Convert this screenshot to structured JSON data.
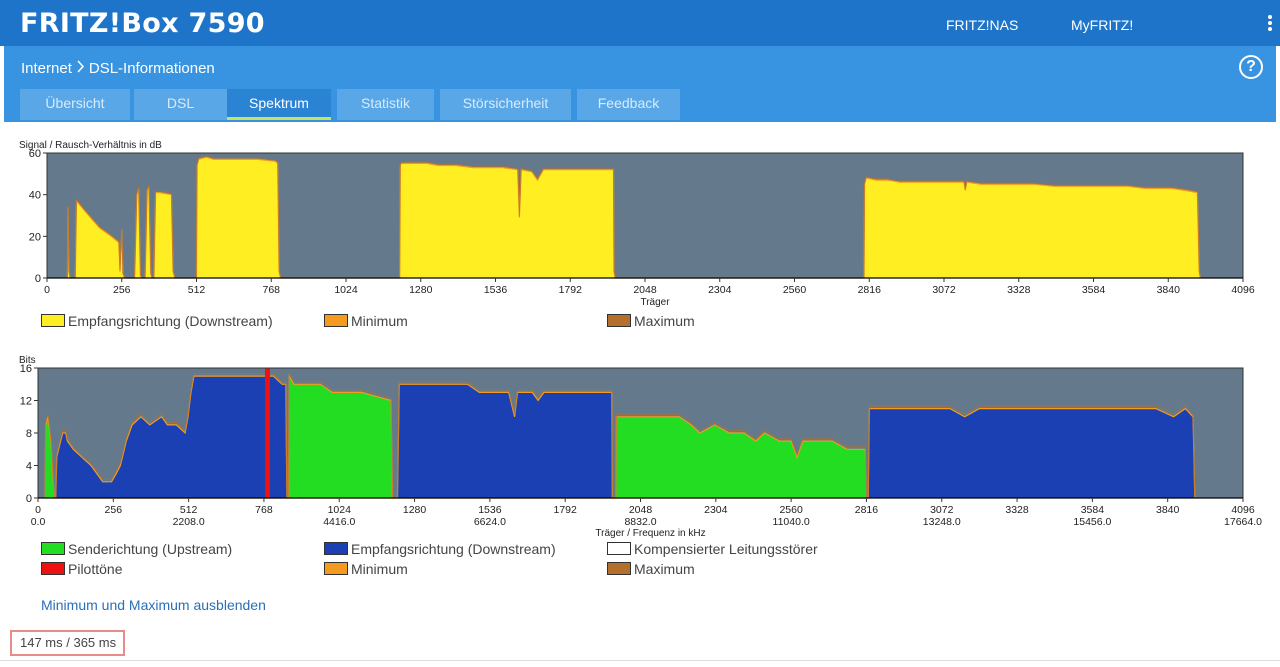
{
  "header": {
    "brand": "FRITZ!Box 7590",
    "links": [
      "FRITZ!NAS",
      "MyFRITZ!"
    ],
    "more_icon": "more-vertical-icon"
  },
  "breadcrumb": {
    "parent": "Internet",
    "separator": ">",
    "current": "DSL-Informationen",
    "help_icon": "help-icon"
  },
  "tabs": [
    {
      "label": "Übersicht",
      "active": false
    },
    {
      "label": "DSL",
      "active": false
    },
    {
      "label": "Spektrum",
      "active": true
    },
    {
      "label": "Statistik",
      "active": false
    },
    {
      "label": "Störsicherheit",
      "active": false
    },
    {
      "label": "Feedback",
      "active": false
    }
  ],
  "colors": {
    "plot_bg": "#647a8c",
    "snr_fill": "#ffee22",
    "minimum": "#f39a1f",
    "maximum": "#b46f2d",
    "upstream": "#22dd22",
    "downstream": "#1a40b4",
    "pilot": "#ee1111",
    "compensated": "#ffffff"
  },
  "chart_data": [
    {
      "type": "area",
      "ylabel": "Signal / Rausch-Verhältnis in dB",
      "xlabel": "Träger",
      "xlim": [
        0,
        4096
      ],
      "ylim": [
        0,
        60
      ],
      "yticks": [
        0,
        20,
        40,
        60
      ],
      "xticks": [
        0,
        256,
        512,
        768,
        1024,
        1280,
        1536,
        1792,
        2048,
        2304,
        2560,
        2816,
        3072,
        3328,
        3584,
        3840,
        4096
      ],
      "legend": [
        {
          "label": "Empfangsrichtung (Downstream)",
          "color_key": "snr_fill"
        },
        {
          "label": "Minimum",
          "color_key": "minimum"
        },
        {
          "label": "Maximum",
          "color_key": "maximum"
        }
      ],
      "series": [
        {
          "band": "downstream",
          "points": [
            [
              70,
              0
            ],
            [
              72,
              34
            ],
            [
              75,
              3
            ],
            [
              79,
              0
            ],
            [
              97,
              0
            ],
            [
              101,
              37
            ],
            [
              130,
              32
            ],
            [
              180,
              24
            ],
            [
              220,
              20
            ],
            [
              246,
              17
            ],
            [
              250,
              3
            ],
            [
              256,
              23
            ],
            [
              260,
              2
            ],
            [
              266,
              0
            ],
            [
              300,
              0
            ],
            [
              308,
              40
            ],
            [
              314,
              43
            ],
            [
              320,
              1
            ],
            [
              326,
              0
            ],
            [
              336,
              0
            ],
            [
              343,
              42
            ],
            [
              349,
              44
            ],
            [
              355,
              2
            ],
            [
              360,
              0
            ],
            [
              366,
              0
            ],
            [
              372,
              41
            ],
            [
              386,
              41
            ],
            [
              426,
              40
            ],
            [
              432,
              3
            ],
            [
              438,
              0
            ],
            [
              512,
              0
            ],
            [
              514,
              54
            ],
            [
              520,
              57
            ],
            [
              546,
              58
            ],
            [
              570,
              57
            ],
            [
              640,
              57
            ],
            [
              720,
              57
            ],
            [
              782,
              56
            ],
            [
              790,
              55
            ],
            [
              795,
              3
            ],
            [
              800,
              0
            ],
            [
              1208,
              0
            ],
            [
              1210,
              54
            ],
            [
              1214,
              55
            ],
            [
              1240,
              55
            ],
            [
              1300,
              55
            ],
            [
              1340,
              54
            ],
            [
              1400,
              54
            ],
            [
              1460,
              53
            ],
            [
              1510,
              53
            ],
            [
              1560,
              53
            ],
            [
              1612,
              52
            ],
            [
              1618,
              29
            ],
            [
              1624,
              52
            ],
            [
              1660,
              51
            ],
            [
              1680,
              47
            ],
            [
              1700,
              52
            ],
            [
              1760,
              52
            ],
            [
              1830,
              52
            ],
            [
              1940,
              52
            ],
            [
              1942,
              3
            ],
            [
              1946,
              0
            ],
            [
              2798,
              0
            ],
            [
              2800,
              45
            ],
            [
              2806,
              48
            ],
            [
              2840,
              47
            ],
            [
              2880,
              47
            ],
            [
              2920,
              46
            ],
            [
              3000,
              46
            ],
            [
              3080,
              46
            ],
            [
              3140,
              46
            ],
            [
              3145,
              42
            ],
            [
              3150,
              46
            ],
            [
              3200,
              45
            ],
            [
              3300,
              45
            ],
            [
              3380,
              45
            ],
            [
              3450,
              44
            ],
            [
              3520,
              44
            ],
            [
              3600,
              44
            ],
            [
              3700,
              44
            ],
            [
              3760,
              43
            ],
            [
              3800,
              43
            ],
            [
              3850,
              43
            ],
            [
              3900,
              42
            ],
            [
              3940,
              41
            ],
            [
              3946,
              3
            ],
            [
              3950,
              0
            ]
          ]
        }
      ]
    },
    {
      "type": "area",
      "ylabel": "Bits",
      "xlabel": "Träger / Frequenz in kHz",
      "xlim": [
        0,
        4096
      ],
      "ylim": [
        0,
        16
      ],
      "yticks": [
        0,
        4,
        8,
        12,
        16
      ],
      "xticks": [
        0,
        256,
        512,
        768,
        1024,
        1280,
        1536,
        1792,
        2048,
        2304,
        2560,
        2816,
        3072,
        3328,
        3584,
        3840,
        4096
      ],
      "freq_ticks": [
        {
          "carrier": 0,
          "label": "0.0"
        },
        {
          "carrier": 512,
          "label": "2208.0"
        },
        {
          "carrier": 1024,
          "label": "4416.0"
        },
        {
          "carrier": 1536,
          "label": "6624.0"
        },
        {
          "carrier": 2048,
          "label": "8832.0"
        },
        {
          "carrier": 2560,
          "label": "11040.0"
        },
        {
          "carrier": 3072,
          "label": "13248.0"
        },
        {
          "carrier": 3584,
          "label": "15456.0"
        },
        {
          "carrier": 4096,
          "label": "17664.0"
        }
      ],
      "legend": [
        {
          "label": "Senderichtung (Upstream)",
          "color_key": "upstream"
        },
        {
          "label": "Empfangsrichtung (Downstream)",
          "color_key": "downstream"
        },
        {
          "label": "Kompensierter Leitungsstörer",
          "color_key": "compensated"
        },
        {
          "label": "Pilottöne",
          "color_key": "pilot"
        },
        {
          "label": "Minimum",
          "color_key": "minimum"
        },
        {
          "label": "Maximum",
          "color_key": "maximum"
        }
      ],
      "pilot_carriers": [
        780
      ],
      "series": [
        {
          "band": "upstream",
          "points": [
            [
              24,
              0
            ],
            [
              26,
              9
            ],
            [
              34,
              10
            ],
            [
              44,
              7
            ],
            [
              50,
              3
            ],
            [
              56,
              0
            ],
            [
              852,
              0
            ],
            [
              854,
              15
            ],
            [
              870,
              14
            ],
            [
              960,
              14
            ],
            [
              1000,
              13
            ],
            [
              1030,
              13
            ],
            [
              1100,
              13
            ],
            [
              1200,
              12
            ],
            [
              1205,
              0
            ],
            [
              1964,
              0
            ],
            [
              1966,
              10
            ],
            [
              2000,
              10
            ],
            [
              2100,
              10
            ],
            [
              2180,
              10
            ],
            [
              2220,
              9
            ],
            [
              2250,
              8
            ],
            [
              2300,
              9
            ],
            [
              2350,
              8
            ],
            [
              2400,
              8
            ],
            [
              2440,
              7
            ],
            [
              2470,
              8
            ],
            [
              2520,
              7
            ],
            [
              2560,
              7
            ],
            [
              2580,
              5
            ],
            [
              2600,
              7
            ],
            [
              2650,
              7
            ],
            [
              2700,
              7
            ],
            [
              2750,
              6
            ],
            [
              2800,
              6
            ],
            [
              2812,
              6
            ],
            [
              2815,
              0
            ]
          ]
        },
        {
          "band": "downstream",
          "points": [
            [
              60,
              0
            ],
            [
              64,
              5
            ],
            [
              70,
              6
            ],
            [
              84,
              8
            ],
            [
              94,
              8
            ],
            [
              100,
              7
            ],
            [
              120,
              6
            ],
            [
              150,
              5
            ],
            [
              180,
              4
            ],
            [
              200,
              3
            ],
            [
              220,
              2
            ],
            [
              250,
              2
            ],
            [
              266,
              3
            ],
            [
              280,
              4
            ],
            [
              300,
              7
            ],
            [
              320,
              9
            ],
            [
              350,
              10
            ],
            [
              380,
              9
            ],
            [
              420,
              10
            ],
            [
              440,
              9
            ],
            [
              470,
              9
            ],
            [
              500,
              8
            ],
            [
              510,
              10
            ],
            [
              520,
              13
            ],
            [
              530,
              15
            ],
            [
              560,
              15
            ],
            [
              600,
              15
            ],
            [
              650,
              15
            ],
            [
              700,
              15
            ],
            [
              760,
              15
            ],
            [
              800,
              15
            ],
            [
              830,
              14
            ],
            [
              842,
              14
            ],
            [
              846,
              0
            ],
            [
              1222,
              0
            ],
            [
              1228,
              14
            ],
            [
              1260,
              14
            ],
            [
              1320,
              14
            ],
            [
              1360,
              14
            ],
            [
              1400,
              14
            ],
            [
              1440,
              14
            ],
            [
              1460,
              14
            ],
            [
              1500,
              13
            ],
            [
              1540,
              13
            ],
            [
              1560,
              13
            ],
            [
              1600,
              13
            ],
            [
              1620,
              10
            ],
            [
              1630,
              13
            ],
            [
              1680,
              13
            ],
            [
              1700,
              12
            ],
            [
              1720,
              13
            ],
            [
              1760,
              13
            ],
            [
              1800,
              13
            ],
            [
              1900,
              13
            ],
            [
              1950,
              13
            ],
            [
              1952,
              0
            ],
            [
              2822,
              0
            ],
            [
              2826,
              11
            ],
            [
              2850,
              11
            ],
            [
              2900,
              11
            ],
            [
              3000,
              11
            ],
            [
              3100,
              11
            ],
            [
              3150,
              10
            ],
            [
              3200,
              11
            ],
            [
              3300,
              11
            ],
            [
              3400,
              11
            ],
            [
              3500,
              11
            ],
            [
              3600,
              11
            ],
            [
              3700,
              11
            ],
            [
              3800,
              11
            ],
            [
              3860,
              10
            ],
            [
              3900,
              11
            ],
            [
              3926,
              10
            ],
            [
              3932,
              0
            ]
          ]
        }
      ]
    }
  ],
  "controls": {
    "toggle_minmax": "Minimum und Maximum ausblenden"
  },
  "status": {
    "timing": "147 ms / 365 ms"
  }
}
